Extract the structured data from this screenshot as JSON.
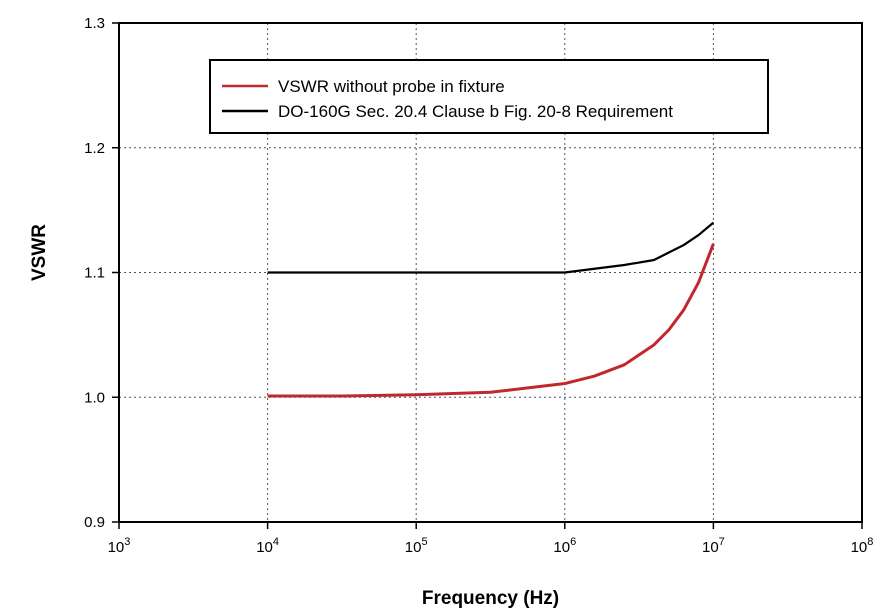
{
  "chart_data": {
    "type": "line",
    "title": "",
    "xlabel": "Frequency (Hz)",
    "ylabel": "VSWR",
    "x_scale": "log",
    "xlim": [
      1000,
      100000000
    ],
    "ylim": [
      0.9,
      1.3
    ],
    "grid": true,
    "legend_position": "top",
    "x_ticks": [
      {
        "base": "10",
        "exp": "3",
        "value": 1000
      },
      {
        "base": "10",
        "exp": "4",
        "value": 10000
      },
      {
        "base": "10",
        "exp": "5",
        "value": 100000
      },
      {
        "base": "10",
        "exp": "6",
        "value": 1000000
      },
      {
        "base": "10",
        "exp": "7",
        "value": 10000000
      },
      {
        "base": "10",
        "exp": "8",
        "value": 100000000
      }
    ],
    "y_ticks": [
      {
        "label": "0.9",
        "value": 0.9
      },
      {
        "label": "1.0",
        "value": 1.0
      },
      {
        "label": "1.1",
        "value": 1.1
      },
      {
        "label": "1.2",
        "value": 1.2
      },
      {
        "label": "1.3",
        "value": 1.3
      }
    ],
    "series": [
      {
        "name": "VSWR without probe in fixture",
        "color": "#c0282d",
        "points": [
          [
            10000,
            1.001
          ],
          [
            31623,
            1.001
          ],
          [
            100000,
            1.002
          ],
          [
            316228,
            1.004
          ],
          [
            1000000,
            1.011
          ],
          [
            1584893,
            1.017
          ],
          [
            2511886,
            1.026
          ],
          [
            3981072,
            1.042
          ],
          [
            5011872,
            1.054
          ],
          [
            6309573,
            1.07
          ],
          [
            7943282,
            1.092
          ],
          [
            10000000,
            1.123
          ]
        ]
      },
      {
        "name": "DO-160G Sec. 20.4 Clause b Fig. 20-8 Requirement",
        "color": "#000000",
        "points": [
          [
            10000,
            1.1
          ],
          [
            100000,
            1.1
          ],
          [
            1000000,
            1.1
          ],
          [
            1584893,
            1.103
          ],
          [
            2511886,
            1.106
          ],
          [
            3981072,
            1.11
          ],
          [
            5011872,
            1.116
          ],
          [
            6309573,
            1.122
          ],
          [
            7943282,
            1.13
          ],
          [
            10000000,
            1.14
          ]
        ]
      }
    ]
  }
}
